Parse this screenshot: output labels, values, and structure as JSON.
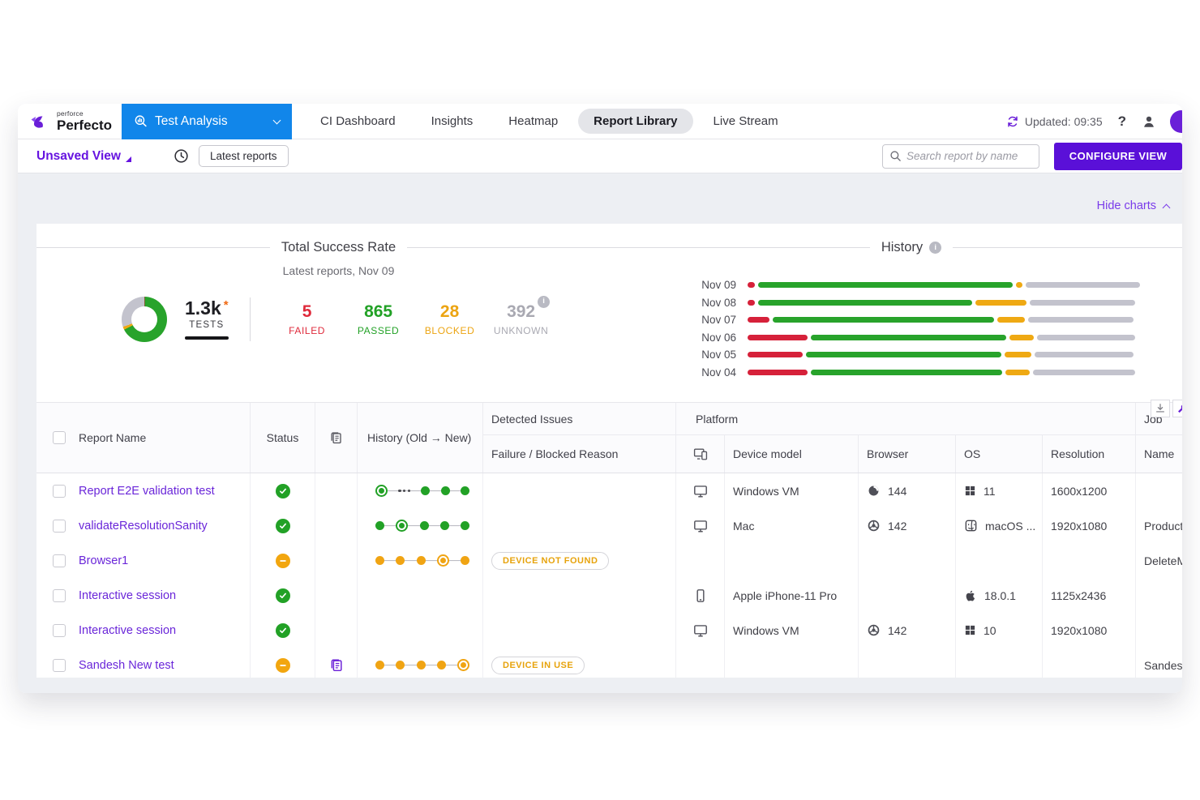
{
  "nav": {
    "brand_small": "perforce",
    "brand_name": "Perfecto",
    "active_tab": "Test Analysis",
    "items": [
      "CI Dashboard",
      "Insights",
      "Heatmap",
      "Report Library",
      "Live Stream"
    ],
    "selected_item": "Report Library",
    "updated_label": "Updated: 09:35",
    "help_label": "?"
  },
  "toolbar": {
    "view_label": "Unsaved View",
    "time_filter_label": "Latest reports",
    "search_placeholder": "Search report by name",
    "configure_label": "CONFIGURE VIEW"
  },
  "charts_toggle_label": "Hide charts",
  "chart_data": [
    {
      "type": "pie",
      "style": "donut",
      "title": "Total Success Rate",
      "subtitle": "Latest reports, Nov 09",
      "total_label": "1.3k",
      "total_marker": "*",
      "total_sublabel": "TESTS",
      "slices": [
        {
          "label": "FAILED",
          "value": 5,
          "color": "#d6213a",
          "text_color": "#df2a3b"
        },
        {
          "label": "PASSED",
          "value": 865,
          "color": "#28a32b",
          "text_color": "#22a126"
        },
        {
          "label": "BLOCKED",
          "value": 28,
          "color": "#efa913",
          "text_color": "#eca412"
        },
        {
          "label": "UNKNOWN",
          "value": 392,
          "color": "#c3c3cd",
          "text_color": "#a9a9b2",
          "info_icon": true
        }
      ]
    },
    {
      "type": "bar",
      "orientation": "horizontal-stacked",
      "title": "History",
      "has_info_icon": true,
      "categories": [
        "Nov 09",
        "Nov 08",
        "Nov 07",
        "Nov 06",
        "Nov 05",
        "Nov 04"
      ],
      "series": [
        {
          "name": "failed",
          "color": "#d6213a",
          "values_pct": [
            1.8,
            1.8,
            5.5,
            15.0,
            13.8,
            15.0
          ]
        },
        {
          "name": "passed",
          "color": "#28a32b",
          "values_pct": [
            63.5,
            53.5,
            55.2,
            48.8,
            48.8,
            47.8
          ]
        },
        {
          "name": "blocked",
          "color": "#efa913",
          "values_pct": [
            1.8,
            12.8,
            7.0,
            6.0,
            6.7,
            6.0
          ]
        },
        {
          "name": "unknown",
          "color": "#c3c3cd",
          "values_pct": [
            28.5,
            26.3,
            26.3,
            24.5,
            24.7,
            25.6
          ]
        }
      ]
    }
  ],
  "table": {
    "headers": {
      "report_name": "Report Name",
      "status": "Status",
      "history": "History (Old → New)",
      "detected_issues": "Detected Issues",
      "failure_reason": "Failure / Blocked Reason",
      "platform": "Platform",
      "device_model": "Device model",
      "browser": "Browser",
      "os": "OS",
      "resolution": "Resolution",
      "job": "Job",
      "job_name": "Name"
    },
    "rows": [
      {
        "name": "Report E2E validation test",
        "status": "passed",
        "artifact": false,
        "history": {
          "color": "green",
          "pattern": [
            "ring",
            "ellipsis",
            "dot",
            "dot",
            "dot"
          ]
        },
        "reason": "",
        "device_type": "desktop",
        "device_model": "Windows VM",
        "browser_icon": "firefox",
        "browser_version": "144",
        "os_icon": "windows",
        "os_version": "11",
        "resolution": "1600x1200",
        "job_name": ""
      },
      {
        "name": "validateResolutionSanity",
        "status": "passed",
        "artifact": false,
        "history": {
          "color": "green",
          "pattern": [
            "dot",
            "ring",
            "dot",
            "dot",
            "dot"
          ]
        },
        "reason": "",
        "device_type": "desktop",
        "device_model": "Mac",
        "browser_icon": "chrome",
        "browser_version": "142",
        "os_icon": "macos",
        "os_version": "macOS ...",
        "resolution": "1920x1080",
        "job_name": "Producti"
      },
      {
        "name": "Browser1",
        "status": "blocked",
        "artifact": false,
        "history": {
          "color": "orange",
          "pattern": [
            "dot",
            "dot",
            "dot",
            "ring",
            "dot"
          ]
        },
        "reason": "DEVICE NOT FOUND",
        "device_type": null,
        "device_model": "",
        "browser_icon": null,
        "browser_version": "",
        "os_icon": null,
        "os_version": "",
        "resolution": "",
        "job_name": "DeleteM"
      },
      {
        "name": "Interactive session",
        "status": "passed",
        "artifact": false,
        "history": null,
        "reason": "",
        "device_type": "phone",
        "device_model": "Apple iPhone-11 Pro",
        "browser_icon": null,
        "browser_version": "",
        "os_icon": "apple",
        "os_version": "18.0.1",
        "resolution": "1125x2436",
        "job_name": ""
      },
      {
        "name": "Interactive session",
        "status": "passed",
        "artifact": false,
        "history": null,
        "reason": "",
        "device_type": "desktop",
        "device_model": "Windows VM",
        "browser_icon": "chrome",
        "browser_version": "142",
        "os_icon": "windows",
        "os_version": "10",
        "resolution": "1920x1080",
        "job_name": ""
      },
      {
        "name": "Sandesh New test",
        "status": "blocked",
        "artifact": true,
        "history": {
          "color": "orange",
          "pattern": [
            "dot",
            "dot",
            "dot",
            "dot",
            "ring"
          ]
        },
        "reason": "DEVICE IN USE",
        "device_type": null,
        "device_model": "",
        "browser_icon": null,
        "browser_version": "",
        "os_icon": null,
        "os_version": "",
        "resolution": "",
        "job_name": "Sandesh"
      }
    ]
  },
  "colors": {
    "accent_blue": "#1186ea",
    "brand_purple": "#6a1fd8",
    "button_purple": "#5a10d8",
    "passed_green": "#22a126",
    "failed_red": "#d6213a",
    "blocked_orange": "#f0a413",
    "unknown_gray": "#c3c3cd",
    "app_background": "#edeff3"
  }
}
